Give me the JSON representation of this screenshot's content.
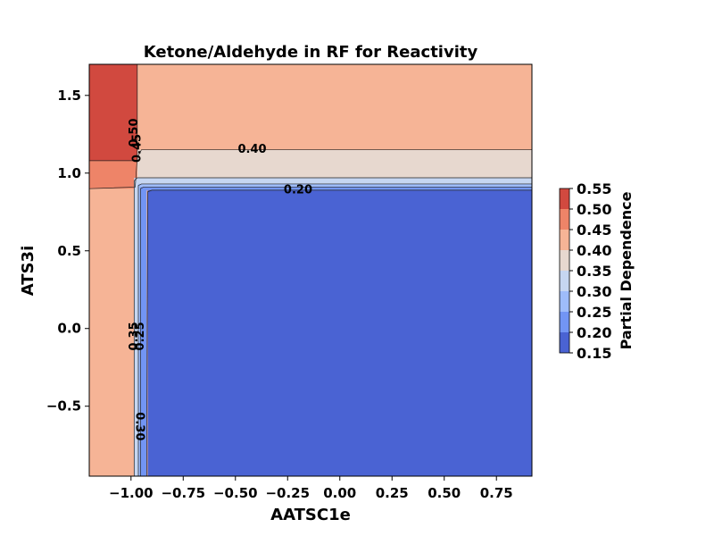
{
  "chart_data": {
    "type": "contour",
    "title": "Ketone/Aldehyde in RF for Reactivity",
    "xlabel": "AATSC1e",
    "ylabel": "ATS3i",
    "xlim": [
      -1.2,
      0.92
    ],
    "ylim": [
      -0.95,
      1.7
    ],
    "x_ticks": [
      -1.0,
      -0.75,
      -0.5,
      -0.25,
      0.0,
      0.25,
      0.5,
      0.75
    ],
    "x_tick_labels": [
      "−1.00",
      "−0.75",
      "−0.50",
      "−0.25",
      "0.00",
      "0.25",
      "0.50",
      "0.75"
    ],
    "y_ticks": [
      -0.5,
      0.0,
      0.5,
      1.0,
      1.5
    ],
    "y_tick_labels": [
      "−0.5",
      "0.0",
      "0.5",
      "1.0",
      "1.5"
    ],
    "colorbar": {
      "label": "Partial Dependence",
      "levels": [
        0.15,
        0.2,
        0.25,
        0.3,
        0.35,
        0.4,
        0.45,
        0.5,
        0.55
      ],
      "tick_labels": [
        "0.15",
        "0.20",
        "0.25",
        "0.30",
        "0.35",
        "0.40",
        "0.45",
        "0.50",
        "0.55"
      ],
      "colors": [
        "#4a63d3",
        "#7295f4",
        "#9ebcfa",
        "#c6d6f1",
        "#e7d8cf",
        "#f6b496",
        "#ee8468",
        "#d1493f"
      ]
    },
    "regions": [
      {
        "level_range": [
          0.4,
          0.45
        ],
        "color": "#f6b496",
        "description_value": "background"
      },
      {
        "level_range": [
          0.5,
          0.55
        ],
        "x": [
          -1.2,
          -0.97
        ],
        "y": [
          1.08,
          1.7
        ],
        "color": "#d1493f"
      },
      {
        "level_range": [
          0.45,
          0.5
        ],
        "x": [
          -1.2,
          -0.97
        ],
        "y": [
          0.9,
          1.08
        ],
        "color": "#ee8468"
      },
      {
        "level_range": [
          0.35,
          0.4
        ],
        "x": [
          -0.97,
          0.92
        ],
        "y": [
          0.97,
          1.15
        ],
        "color": "#e7d8cf"
      },
      {
        "level_range": [
          0.3,
          0.35
        ],
        "x": [
          -0.98,
          0.92
        ],
        "y": [
          0.93,
          0.97
        ],
        "color": "#c6d6f1"
      },
      {
        "level_range": [
          0.25,
          0.3
        ],
        "x": [
          -0.97,
          0.92
        ],
        "y": [
          0.91,
          0.93
        ],
        "color": "#9ebcfa"
      },
      {
        "level_range": [
          0.2,
          0.25
        ],
        "x": [
          -0.96,
          0.92
        ],
        "y": [
          0.89,
          0.91
        ],
        "color": "#7295f4"
      },
      {
        "level_range": [
          0.15,
          0.2
        ],
        "x": [
          -0.92,
          0.92
        ],
        "y": [
          -0.95,
          0.89
        ],
        "color": "#4a63d3"
      }
    ],
    "contour_labels": [
      {
        "text": "0.40",
        "x": -0.42,
        "y": 1.15,
        "rotation": 0
      },
      {
        "text": "0.20",
        "x": -0.2,
        "y": 0.89,
        "rotation": 0
      },
      {
        "text": "0.50",
        "x": -0.985,
        "y": 1.26,
        "rotation": -90
      },
      {
        "text": "0.45",
        "x": -0.97,
        "y": 1.16,
        "rotation": -90
      },
      {
        "text": "0.25",
        "x": -0.955,
        "y": -0.05,
        "rotation": -90
      },
      {
        "text": "0.35",
        "x": -0.985,
        "y": -0.05,
        "rotation": -90
      },
      {
        "text": "0.30",
        "x": -0.96,
        "y": -0.63,
        "rotation": 90
      }
    ]
  }
}
